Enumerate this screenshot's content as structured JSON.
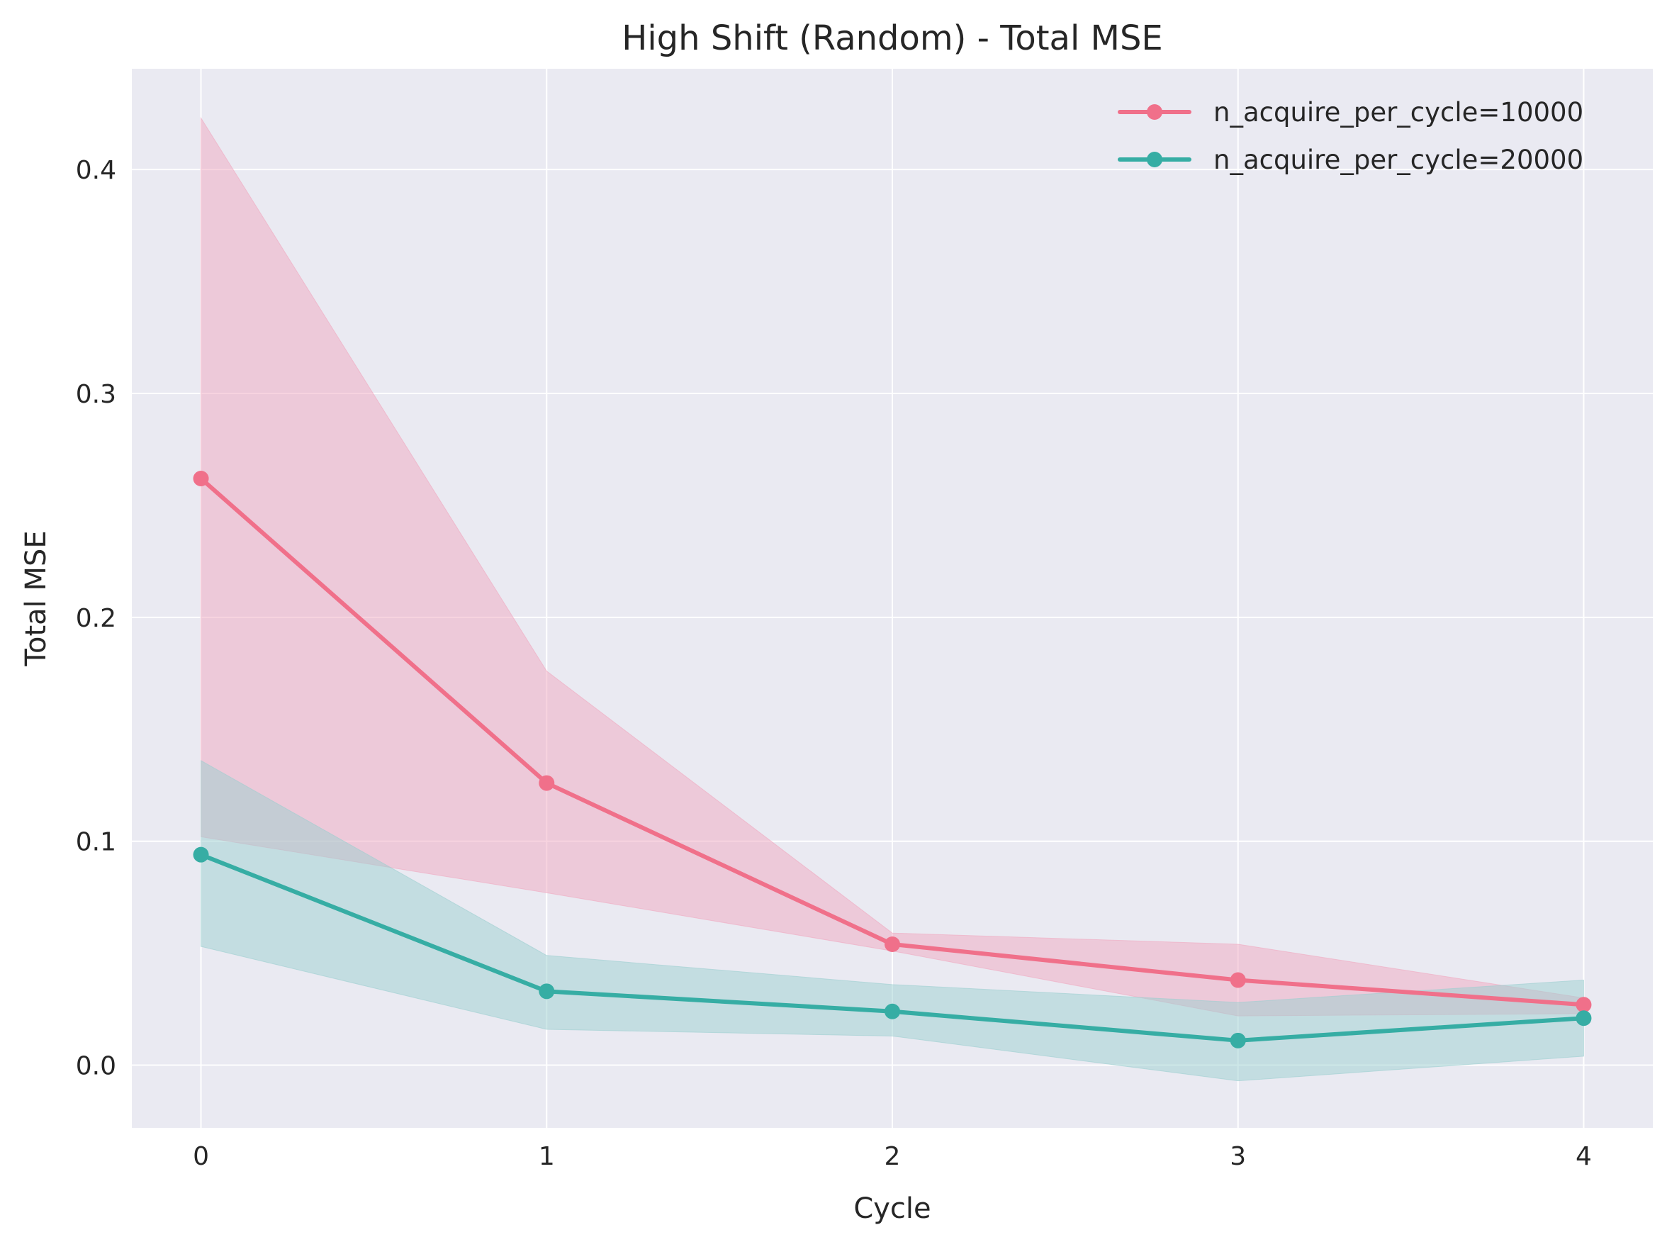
{
  "chart_data": {
    "type": "line",
    "title": "High Shift (Random) - Total MSE",
    "xlabel": "Cycle",
    "ylabel": "Total MSE",
    "x": [
      0,
      1,
      2,
      3,
      4
    ],
    "xticks": [
      "0",
      "1",
      "2",
      "3",
      "4"
    ],
    "yticks": [
      "0.0",
      "0.1",
      "0.2",
      "0.3",
      "0.4"
    ],
    "xlim": [
      -0.2,
      4.2
    ],
    "ylim": [
      -0.028,
      0.445
    ],
    "grid": true,
    "legend_position": "top-right",
    "background_color": "#eaeaf2",
    "series": [
      {
        "name": "n_acquire_per_cycle=10000",
        "color": "#f0708a",
        "fill_color": "#f0a8c0",
        "values": [
          0.262,
          0.126,
          0.054,
          0.038,
          0.027
        ],
        "lower": [
          0.102,
          0.077,
          0.051,
          0.022,
          0.023
        ],
        "upper": [
          0.423,
          0.176,
          0.059,
          0.054,
          0.03
        ]
      },
      {
        "name": "n_acquire_per_cycle=20000",
        "color": "#36ada4",
        "fill_color": "#9ccfd0",
        "values": [
          0.094,
          0.033,
          0.024,
          0.011,
          0.021
        ],
        "lower": [
          0.053,
          0.016,
          0.013,
          -0.007,
          0.004
        ],
        "upper": [
          0.136,
          0.049,
          0.036,
          0.028,
          0.038
        ]
      }
    ]
  }
}
